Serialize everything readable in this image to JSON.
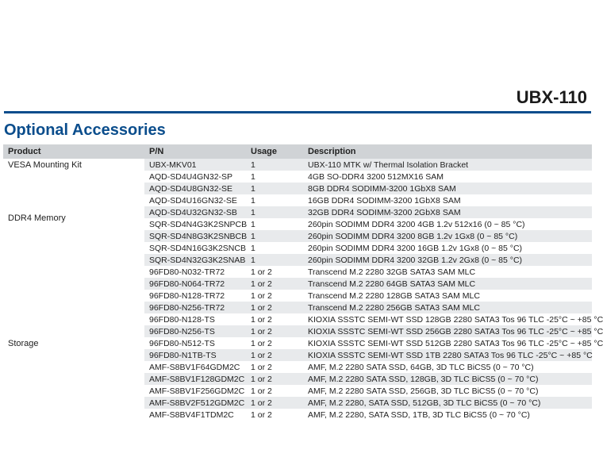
{
  "model": "UBX-110",
  "section_title": "Optional Accessories",
  "columns": [
    "Product",
    "P/N",
    "Usage",
    "Description"
  ],
  "colors": {
    "accent": "#0a4d8c",
    "header_bg": "#d0d3d6",
    "row_alt_bg": "#e8eaec",
    "row_bg": "#ffffff",
    "text": "#222222"
  },
  "groups": [
    {
      "product": "VESA Mounting Kit",
      "rows": [
        {
          "pn": "UBX-MKV01",
          "usage": "1",
          "desc": "UBX-110 MTK w/ Thermal Isolation Bracket"
        }
      ]
    },
    {
      "product": "DDR4 Memory",
      "rows": [
        {
          "pn": "AQD-SD4U4GN32-SP",
          "usage": "1",
          "desc": "4GB SO-DDR4 3200 512MX16 SAM"
        },
        {
          "pn": "AQD-SD4U8GN32-SE",
          "usage": "1",
          "desc": "8GB DDR4 SODIMM-3200 1GbX8 SAM"
        },
        {
          "pn": "AQD-SD4U16GN32-SE",
          "usage": "1",
          "desc": "16GB DDR4 SODIMM-3200 1GbX8 SAM"
        },
        {
          "pn": "AQD-SD4U32GN32-SB",
          "usage": "1",
          "desc": "32GB DDR4 SODIMM-3200 2GbX8 SAM"
        },
        {
          "pn": "SQR-SD4N4G3K2SNPCB",
          "usage": "1",
          "desc": "260pin SODIMM DDR4 3200 4GB 1.2v 512x16 (0 ~ 85 °C)"
        },
        {
          "pn": "SQR-SD4N8G3K2SNBCB",
          "usage": "1",
          "desc": "260pin SODIMM DDR4 3200 8GB 1.2v 1Gx8 (0 ~ 85 °C)"
        },
        {
          "pn": "SQR-SD4N16G3K2SNCB",
          "usage": "1",
          "desc": "260pin SODIMM DDR4 3200 16GB 1.2v 1Gx8 (0 ~ 85 °C)"
        },
        {
          "pn": "SQR-SD4N32G3K2SNAB",
          "usage": "1",
          "desc": "260pin SODIMM DDR4 3200 32GB 1.2v 2Gx8 (0 ~ 85 °C)"
        }
      ]
    },
    {
      "product": "Storage",
      "rows": [
        {
          "pn": "96FD80-N032-TR72",
          "usage": "1 or 2",
          "desc": "Transcend M.2 2280 32GB SATA3 SAM MLC"
        },
        {
          "pn": "96FD80-N064-TR72",
          "usage": "1 or 2",
          "desc": "Transcend M.2 2280 64GB SATA3 SAM MLC"
        },
        {
          "pn": "96FD80-N128-TR72",
          "usage": "1 or 2",
          "desc": "Transcend M.2 2280 128GB SATA3 SAM MLC"
        },
        {
          "pn": "96FD80-N256-TR72",
          "usage": "1 or 2",
          "desc": "Transcend M.2 2280 256GB SATA3 SAM MLC"
        },
        {
          "pn": "96FD80-N128-TS",
          "usage": "1 or 2",
          "desc": "KIOXIA SSSTC SEMI-WT SSD 128GB 2280 SATA3 Tos 96 TLC -25°C ~ +85 °C"
        },
        {
          "pn": "96FD80-N256-TS",
          "usage": "1 or 2",
          "desc": "KIOXIA SSSTC SEMI-WT SSD 256GB 2280 SATA3 Tos 96 TLC -25°C ~ +85 °C"
        },
        {
          "pn": "96FD80-N512-TS",
          "usage": "1 or 2",
          "desc": "KIOXIA SSSTC SEMI-WT SSD 512GB 2280 SATA3 Tos 96 TLC -25°C ~ +85 °C"
        },
        {
          "pn": "96FD80-N1TB-TS",
          "usage": "1 or 2",
          "desc": "KIOXIA SSSTC SEMI-WT SSD 1TB 2280 SATA3 Tos 96 TLC -25°C ~ +85 °C"
        },
        {
          "pn": "AMF-S8BV1F64GDM2C",
          "usage": "1 or 2",
          "desc": "AMF, M.2 2280 SATA SSD, 64GB, 3D TLC BiCS5 (0 ~ 70 °C)"
        },
        {
          "pn": "AMF-S8BV1F128GDM2C",
          "usage": "1 or 2",
          "desc": "AMF, M.2 2280 SATA SSD, 128GB, 3D TLC BiCS5 (0 ~ 70 °C)"
        },
        {
          "pn": "AMF-S8BV1F256GDM2C",
          "usage": "1 or 2",
          "desc": "AMF, M.2 2280 SATA SSD, 256GB, 3D TLC BiCS5 (0 ~ 70 °C)"
        },
        {
          "pn": "AMF-S8BV2F512GDM2C",
          "usage": "1 or 2",
          "desc": "AMF, M.2 2280, SATA SSD, 512GB, 3D TLC BiCS5 (0 ~ 70 °C)"
        },
        {
          "pn": "AMF-S8BV4F1TDM2C",
          "usage": "1 or 2",
          "desc": "AMF, M.2 2280, SATA SSD, 1TB, 3D TLC BiCS5 (0 ~ 70 °C)"
        }
      ]
    }
  ]
}
